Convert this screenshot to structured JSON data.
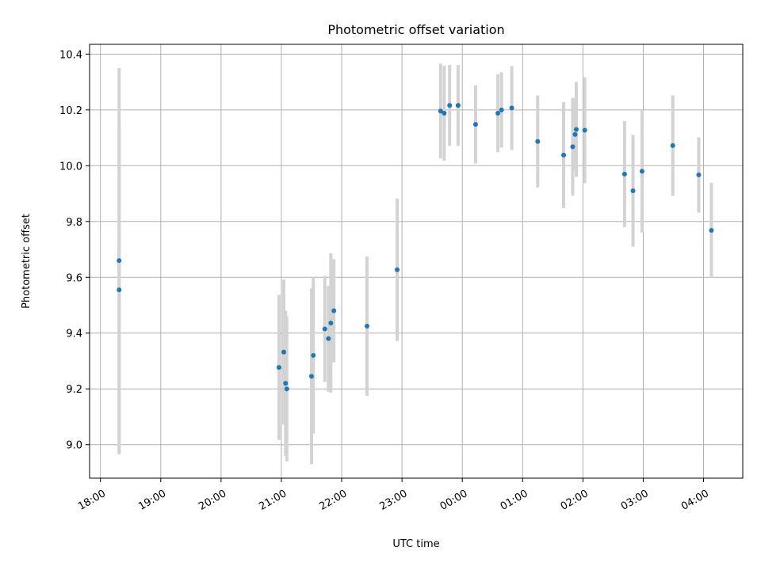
{
  "chart_data": {
    "type": "scatter",
    "title": "Photometric offset variation",
    "xlabel": "UTC time",
    "ylabel": "Photometric offset",
    "x_unit": "hours",
    "xlim": [
      17.82,
      28.65
    ],
    "ylim": [
      8.88,
      10.435
    ],
    "x_ticks": [
      {
        "value": 18,
        "label": "18:00"
      },
      {
        "value": 19,
        "label": "19:00"
      },
      {
        "value": 20,
        "label": "20:00"
      },
      {
        "value": 21,
        "label": "21:00"
      },
      {
        "value": 22,
        "label": "22:00"
      },
      {
        "value": 23,
        "label": "23:00"
      },
      {
        "value": 24,
        "label": "00:00"
      },
      {
        "value": 25,
        "label": "01:00"
      },
      {
        "value": 26,
        "label": "02:00"
      },
      {
        "value": 27,
        "label": "03:00"
      },
      {
        "value": 28,
        "label": "04:00"
      }
    ],
    "y_ticks": [
      {
        "value": 9.0,
        "label": "9.0"
      },
      {
        "value": 9.2,
        "label": "9.2"
      },
      {
        "value": 9.4,
        "label": "9.4"
      },
      {
        "value": 9.6,
        "label": "9.6"
      },
      {
        "value": 9.8,
        "label": "9.8"
      },
      {
        "value": 10.0,
        "label": "10.0"
      },
      {
        "value": 10.2,
        "label": "10.2"
      },
      {
        "value": 10.4,
        "label": "10.4"
      }
    ],
    "grid": true,
    "colors": {
      "point": "#1f77b4",
      "errorbar": "#d3d3d3",
      "grid": "#b0b0b0"
    },
    "points": [
      {
        "x": 18.31,
        "y": 9.66,
        "err": 0.69
      },
      {
        "x": 18.31,
        "y": 9.555,
        "err": 0.59
      },
      {
        "x": 20.96,
        "y": 9.277,
        "err": 0.26
      },
      {
        "x": 21.04,
        "y": 9.332,
        "err": 0.26
      },
      {
        "x": 21.07,
        "y": 9.22,
        "err": 0.26
      },
      {
        "x": 21.09,
        "y": 9.2,
        "err": 0.26
      },
      {
        "x": 21.5,
        "y": 9.245,
        "err": 0.315
      },
      {
        "x": 21.53,
        "y": 9.32,
        "err": 0.28
      },
      {
        "x": 21.72,
        "y": 9.415,
        "err": 0.19
      },
      {
        "x": 21.78,
        "y": 9.38,
        "err": 0.19
      },
      {
        "x": 21.82,
        "y": 9.436,
        "err": 0.25
      },
      {
        "x": 21.87,
        "y": 9.48,
        "err": 0.185
      },
      {
        "x": 22.42,
        "y": 9.425,
        "err": 0.25
      },
      {
        "x": 22.92,
        "y": 9.627,
        "err": 0.255
      },
      {
        "x": 23.64,
        "y": 10.196,
        "err": 0.17
      },
      {
        "x": 23.7,
        "y": 10.188,
        "err": 0.17
      },
      {
        "x": 23.79,
        "y": 10.216,
        "err": 0.145
      },
      {
        "x": 23.93,
        "y": 10.216,
        "err": 0.145
      },
      {
        "x": 24.22,
        "y": 10.148,
        "err": 0.14
      },
      {
        "x": 24.59,
        "y": 10.188,
        "err": 0.14
      },
      {
        "x": 24.65,
        "y": 10.2,
        "err": 0.135
      },
      {
        "x": 24.82,
        "y": 10.207,
        "err": 0.15
      },
      {
        "x": 25.25,
        "y": 10.087,
        "err": 0.165
      },
      {
        "x": 25.68,
        "y": 10.038,
        "err": 0.19
      },
      {
        "x": 25.83,
        "y": 10.068,
        "err": 0.175
      },
      {
        "x": 25.87,
        "y": 10.112,
        "err": 0.13
      },
      {
        "x": 25.89,
        "y": 10.13,
        "err": 0.17
      },
      {
        "x": 26.03,
        "y": 10.127,
        "err": 0.19
      },
      {
        "x": 26.69,
        "y": 9.97,
        "err": 0.19
      },
      {
        "x": 26.83,
        "y": 9.91,
        "err": 0.2
      },
      {
        "x": 26.98,
        "y": 9.98,
        "err": 0.22
      },
      {
        "x": 27.49,
        "y": 10.072,
        "err": 0.18
      },
      {
        "x": 27.92,
        "y": 9.967,
        "err": 0.135
      },
      {
        "x": 28.13,
        "y": 9.768,
        "err": 0.17
      }
    ]
  }
}
